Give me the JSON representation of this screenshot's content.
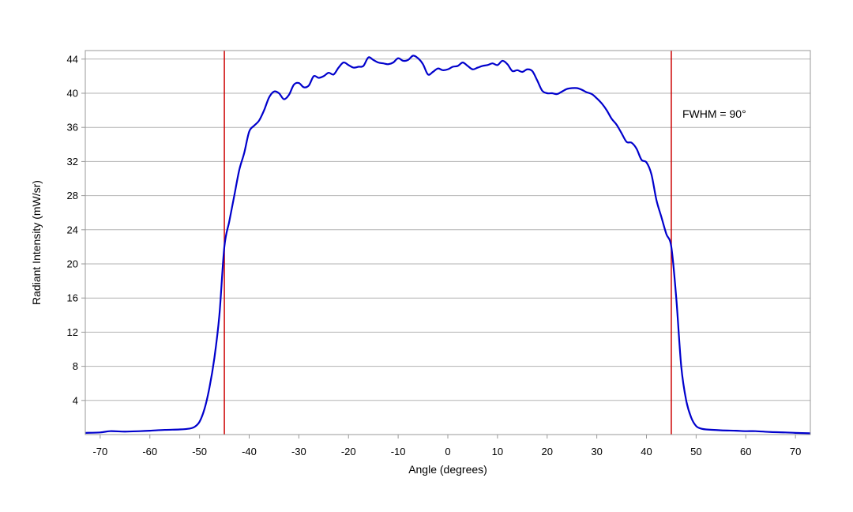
{
  "chart_data": {
    "type": "line",
    "xlabel": "Angle (degrees)",
    "ylabel": "Radiant Intensity (mW/sr)",
    "xlim": [
      -73,
      73
    ],
    "ylim": [
      0,
      45
    ],
    "x_ticks": [
      -70,
      -60,
      -50,
      -40,
      -30,
      -20,
      -10,
      0,
      10,
      20,
      30,
      40,
      50,
      60,
      70
    ],
    "x_tick_labels": [
      "-70",
      "-60",
      "-50",
      "-40",
      "-30",
      "-20",
      "-10",
      "0",
      "10",
      "20",
      "30",
      "40",
      "50",
      "60",
      "70"
    ],
    "y_ticks": [
      4,
      8,
      12,
      16,
      20,
      24,
      28,
      32,
      36,
      40,
      44
    ],
    "y_tick_labels": [
      "4",
      "8",
      "12",
      "16",
      "20",
      "24",
      "28",
      "32",
      "36",
      "40",
      "44"
    ],
    "grid": "horizontal",
    "annotation": "FWHM = 90°",
    "vertical_markers": [
      {
        "x": -45,
        "color": "#cc0000"
      },
      {
        "x": 45,
        "color": "#cc0000"
      }
    ],
    "series": [
      {
        "color": "#0000cc",
        "points": [
          [
            -73,
            0.2
          ],
          [
            -70,
            0.25
          ],
          [
            -68,
            0.4
          ],
          [
            -65,
            0.35
          ],
          [
            -62,
            0.4
          ],
          [
            -60,
            0.45
          ],
          [
            -57,
            0.55
          ],
          [
            -54,
            0.6
          ],
          [
            -52,
            0.7
          ],
          [
            -51,
            0.9
          ],
          [
            -50,
            1.5
          ],
          [
            -49,
            3.0
          ],
          [
            -48,
            5.5
          ],
          [
            -47,
            9.0
          ],
          [
            -46,
            14.0
          ],
          [
            -45,
            22.0
          ],
          [
            -44,
            25.0
          ],
          [
            -43,
            28.0
          ],
          [
            -42,
            31.0
          ],
          [
            -41,
            33.0
          ],
          [
            -40,
            35.5
          ],
          [
            -39,
            36.2
          ],
          [
            -38,
            36.8
          ],
          [
            -37,
            38.0
          ],
          [
            -36,
            39.5
          ],
          [
            -35,
            40.2
          ],
          [
            -34,
            40.0
          ],
          [
            -33,
            39.3
          ],
          [
            -32,
            39.8
          ],
          [
            -31,
            41.0
          ],
          [
            -30,
            41.2
          ],
          [
            -29,
            40.7
          ],
          [
            -28,
            40.9
          ],
          [
            -27,
            42.0
          ],
          [
            -26,
            41.8
          ],
          [
            -25,
            42.0
          ],
          [
            -24,
            42.4
          ],
          [
            -23,
            42.2
          ],
          [
            -22,
            43.0
          ],
          [
            -21,
            43.6
          ],
          [
            -20,
            43.3
          ],
          [
            -19,
            43.0
          ],
          [
            -18,
            43.1
          ],
          [
            -17,
            43.2
          ],
          [
            -16,
            44.2
          ],
          [
            -15,
            43.9
          ],
          [
            -14,
            43.6
          ],
          [
            -13,
            43.5
          ],
          [
            -12,
            43.4
          ],
          [
            -11,
            43.6
          ],
          [
            -10,
            44.1
          ],
          [
            -9,
            43.8
          ],
          [
            -8,
            43.9
          ],
          [
            -7,
            44.4
          ],
          [
            -6,
            44.1
          ],
          [
            -5,
            43.4
          ],
          [
            -4,
            42.2
          ],
          [
            -3,
            42.5
          ],
          [
            -2,
            42.9
          ],
          [
            -1,
            42.7
          ],
          [
            0,
            42.8
          ],
          [
            1,
            43.1
          ],
          [
            2,
            43.2
          ],
          [
            3,
            43.6
          ],
          [
            4,
            43.2
          ],
          [
            5,
            42.8
          ],
          [
            6,
            43.0
          ],
          [
            7,
            43.2
          ],
          [
            8,
            43.3
          ],
          [
            9,
            43.5
          ],
          [
            10,
            43.3
          ],
          [
            11,
            43.8
          ],
          [
            12,
            43.4
          ],
          [
            13,
            42.6
          ],
          [
            14,
            42.7
          ],
          [
            15,
            42.5
          ],
          [
            16,
            42.8
          ],
          [
            17,
            42.6
          ],
          [
            18,
            41.5
          ],
          [
            19,
            40.3
          ],
          [
            20,
            40.0
          ],
          [
            21,
            40.0
          ],
          [
            22,
            39.9
          ],
          [
            23,
            40.2
          ],
          [
            24,
            40.5
          ],
          [
            25,
            40.6
          ],
          [
            26,
            40.6
          ],
          [
            27,
            40.4
          ],
          [
            28,
            40.1
          ],
          [
            29,
            39.9
          ],
          [
            30,
            39.4
          ],
          [
            31,
            38.8
          ],
          [
            32,
            38.0
          ],
          [
            33,
            37.0
          ],
          [
            34,
            36.3
          ],
          [
            35,
            35.3
          ],
          [
            36,
            34.3
          ],
          [
            37,
            34.2
          ],
          [
            38,
            33.5
          ],
          [
            39,
            32.2
          ],
          [
            40,
            31.9
          ],
          [
            41,
            30.5
          ],
          [
            42,
            27.5
          ],
          [
            43,
            25.5
          ],
          [
            44,
            23.5
          ],
          [
            45,
            22.0
          ],
          [
            46,
            16.0
          ],
          [
            47,
            8.0
          ],
          [
            48,
            4.0
          ],
          [
            49,
            2.0
          ],
          [
            50,
            1.0
          ],
          [
            51,
            0.7
          ],
          [
            52,
            0.6
          ],
          [
            55,
            0.5
          ],
          [
            58,
            0.45
          ],
          [
            60,
            0.4
          ],
          [
            62,
            0.4
          ],
          [
            65,
            0.3
          ],
          [
            68,
            0.25
          ],
          [
            70,
            0.2
          ],
          [
            73,
            0.15
          ]
        ]
      }
    ]
  }
}
